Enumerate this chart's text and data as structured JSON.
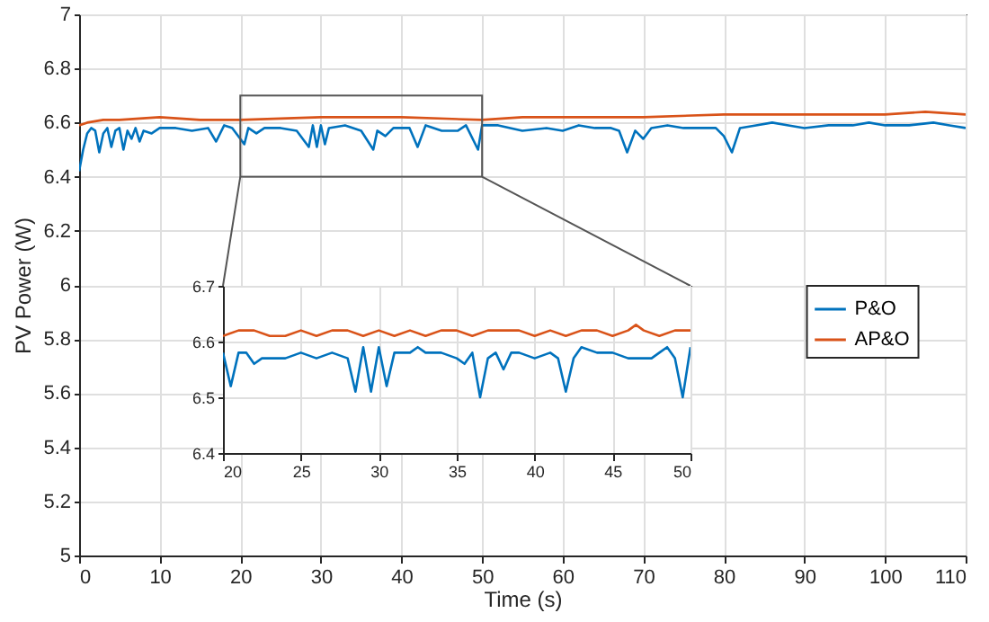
{
  "chart_data": [
    {
      "type": "line",
      "xlabel": "Time (s)",
      "ylabel": "PV Power (W)",
      "xlim": [
        0,
        110
      ],
      "xticks": [
        0,
        10,
        20,
        30,
        40,
        50,
        60,
        70,
        80,
        90,
        100,
        110
      ],
      "ylim": [
        5,
        7
      ],
      "yticks": [
        5,
        5.2,
        5.4,
        5.6,
        5.8,
        6,
        6.2,
        6.4,
        6.6,
        6.8,
        7
      ],
      "grid": true,
      "legend": "right",
      "series": [
        {
          "name": "P&O",
          "color": "#0072bd",
          "x": [
            0,
            0.5,
            1,
            1.5,
            2,
            2.5,
            3,
            3.5,
            4,
            4.5,
            5,
            5.5,
            6,
            6.5,
            7,
            7.5,
            8,
            9,
            10,
            12,
            14,
            16,
            17,
            18,
            19,
            20.5,
            21,
            22,
            23,
            25,
            27,
            28.5,
            29,
            29.5,
            30,
            30.5,
            31,
            33,
            35,
            36.5,
            37,
            38,
            39,
            41,
            42,
            43,
            45,
            47,
            48,
            49.5,
            50,
            52,
            55,
            58,
            60,
            62,
            64,
            66,
            67,
            68,
            69,
            70,
            71,
            73,
            75,
            77,
            79,
            80,
            81,
            82,
            84,
            86,
            88,
            90,
            93,
            96,
            98,
            100,
            103,
            106,
            108,
            110
          ],
          "values": [
            6.42,
            6.5,
            6.56,
            6.58,
            6.57,
            6.49,
            6.56,
            6.58,
            6.51,
            6.57,
            6.58,
            6.5,
            6.57,
            6.54,
            6.58,
            6.53,
            6.57,
            6.56,
            6.58,
            6.58,
            6.57,
            6.58,
            6.53,
            6.59,
            6.58,
            6.52,
            6.58,
            6.56,
            6.58,
            6.58,
            6.57,
            6.51,
            6.59,
            6.51,
            6.59,
            6.52,
            6.58,
            6.59,
            6.57,
            6.5,
            6.57,
            6.55,
            6.58,
            6.58,
            6.51,
            6.59,
            6.57,
            6.57,
            6.59,
            6.5,
            6.59,
            6.59,
            6.57,
            6.58,
            6.57,
            6.59,
            6.58,
            6.58,
            6.57,
            6.49,
            6.57,
            6.54,
            6.58,
            6.59,
            6.58,
            6.58,
            6.58,
            6.55,
            6.49,
            6.58,
            6.59,
            6.6,
            6.59,
            6.58,
            6.59,
            6.59,
            6.6,
            6.59,
            6.59,
            6.6,
            6.59,
            6.58
          ]
        },
        {
          "name": "AP&O",
          "color": "#d95319",
          "x": [
            0,
            1,
            3,
            5,
            10,
            15,
            20,
            30,
            40,
            50,
            55,
            60,
            70,
            80,
            90,
            100,
            105,
            110
          ],
          "values": [
            6.59,
            6.6,
            6.61,
            6.61,
            6.62,
            6.61,
            6.61,
            6.62,
            6.62,
            6.61,
            6.62,
            6.62,
            6.62,
            6.63,
            6.63,
            6.63,
            6.64,
            6.63
          ]
        }
      ]
    },
    {
      "type": "line",
      "xlim": [
        20,
        50
      ],
      "xticks": [
        20,
        25,
        30,
        35,
        40,
        45,
        50
      ],
      "ylim": [
        6.4,
        6.7
      ],
      "yticks": [
        6.4,
        6.5,
        6.6,
        6.7
      ],
      "grid": true,
      "series": [
        {
          "color": "#0072bd",
          "x": [
            20,
            20.5,
            21,
            21.5,
            22,
            22.5,
            23,
            24,
            25,
            26,
            27,
            28,
            28.5,
            29,
            29.5,
            30,
            30.5,
            31,
            32,
            32.5,
            33,
            34,
            35,
            35.5,
            36,
            36.5,
            37,
            37.5,
            38,
            38.5,
            39,
            40,
            41,
            41.5,
            42,
            42.5,
            43,
            44,
            45,
            46,
            47,
            47.5,
            48,
            48.5,
            49,
            49.5,
            50
          ],
          "values": [
            6.58,
            6.52,
            6.58,
            6.58,
            6.56,
            6.57,
            6.57,
            6.57,
            6.58,
            6.57,
            6.58,
            6.57,
            6.51,
            6.59,
            6.51,
            6.59,
            6.52,
            6.58,
            6.58,
            6.59,
            6.58,
            6.58,
            6.57,
            6.56,
            6.58,
            6.5,
            6.57,
            6.58,
            6.55,
            6.58,
            6.58,
            6.57,
            6.58,
            6.57,
            6.51,
            6.57,
            6.59,
            6.58,
            6.58,
            6.57,
            6.57,
            6.57,
            6.58,
            6.59,
            6.57,
            6.5,
            6.59
          ]
        },
        {
          "color": "#d95319",
          "x": [
            20,
            21,
            22,
            23,
            24,
            25,
            26,
            27,
            28,
            29,
            30,
            31,
            32,
            33,
            34,
            35,
            36,
            37,
            38,
            39,
            40,
            41,
            42,
            43,
            44,
            45,
            46,
            46.5,
            47,
            48,
            49,
            50
          ],
          "values": [
            6.61,
            6.62,
            6.62,
            6.61,
            6.61,
            6.62,
            6.61,
            6.62,
            6.62,
            6.61,
            6.62,
            6.61,
            6.62,
            6.61,
            6.62,
            6.62,
            6.61,
            6.62,
            6.62,
            6.62,
            6.61,
            6.62,
            6.61,
            6.62,
            6.62,
            6.61,
            6.62,
            6.63,
            6.62,
            6.61,
            6.62,
            6.62
          ]
        }
      ]
    }
  ]
}
